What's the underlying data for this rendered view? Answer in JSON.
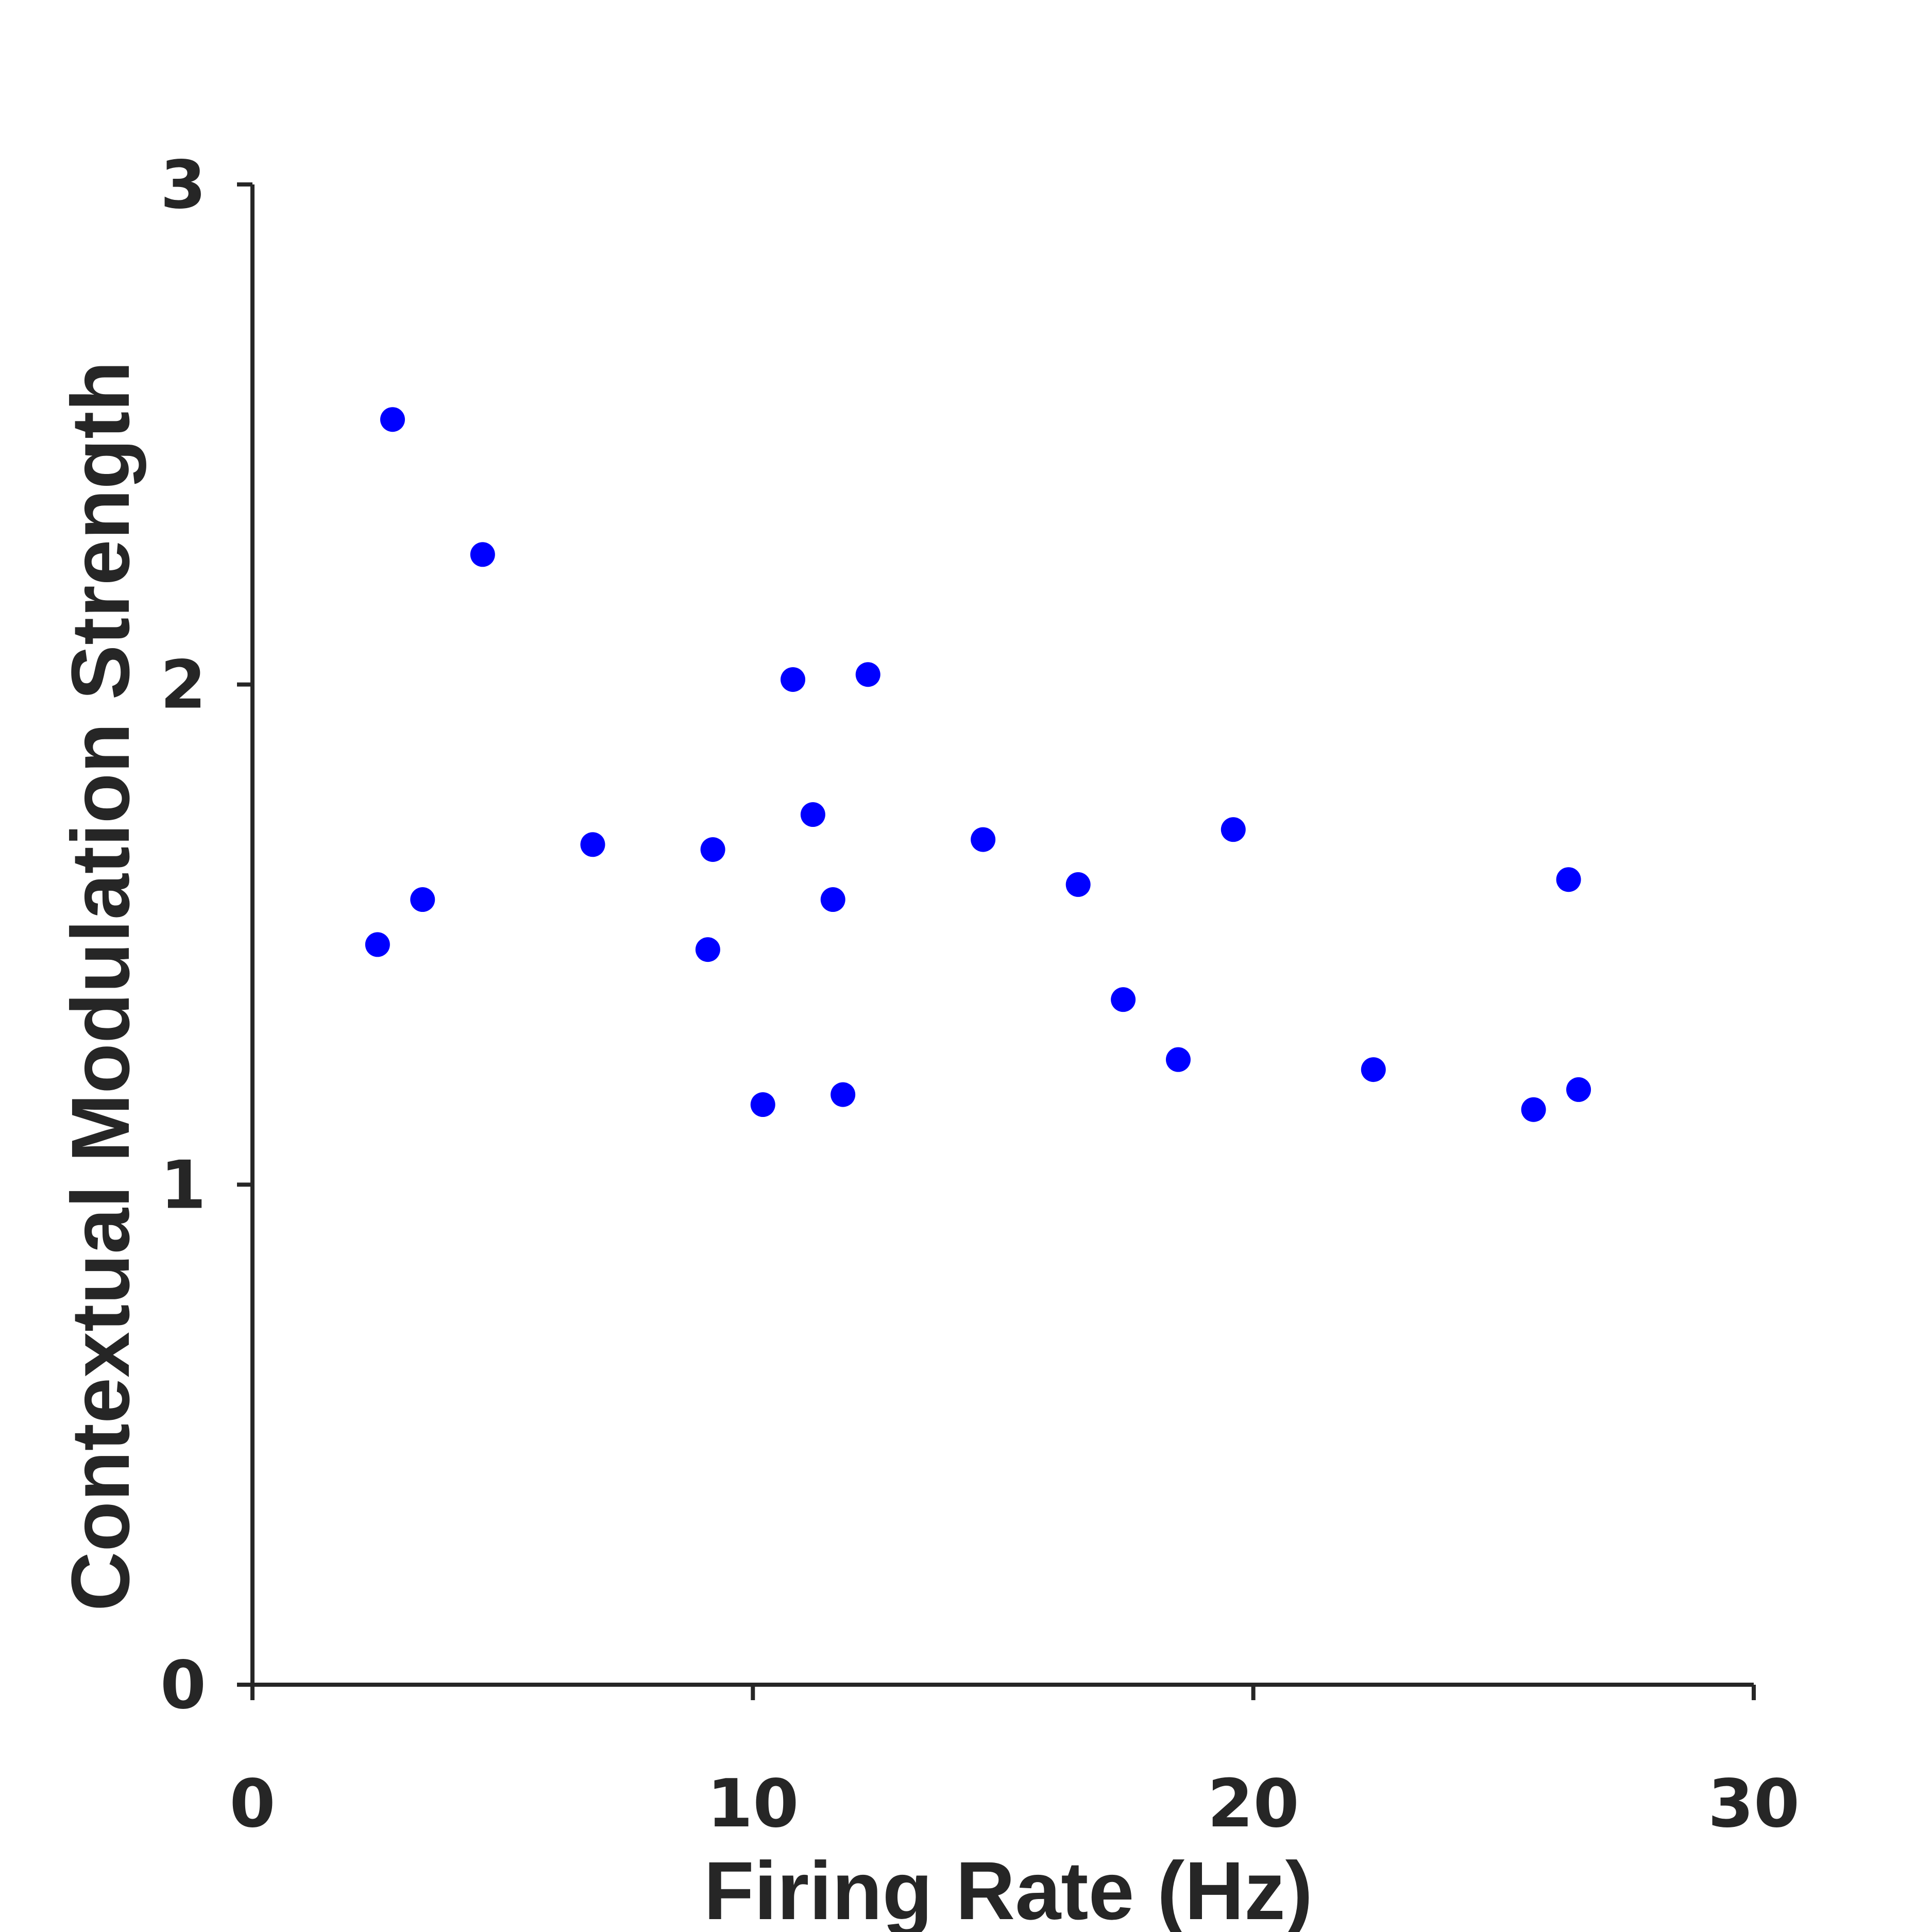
{
  "chart_data": {
    "type": "scatter",
    "title": "",
    "xlabel": "Firing Rate (Hz)",
    "ylabel": "Contextual Modulation Strength",
    "xlim": [
      0,
      30
    ],
    "ylim": [
      0,
      3
    ],
    "xticks": [
      "0",
      "10",
      "20",
      "30"
    ],
    "yticks": [
      "0",
      "1",
      "2",
      "3"
    ],
    "grid": false,
    "marker_color": "#0000ff",
    "axis_color": "#262626",
    "points": [
      {
        "x": 2.5,
        "y": 1.48
      },
      {
        "x": 2.8,
        "y": 2.53
      },
      {
        "x": 3.4,
        "y": 1.57
      },
      {
        "x": 4.6,
        "y": 2.26
      },
      {
        "x": 6.8,
        "y": 1.68
      },
      {
        "x": 9.1,
        "y": 1.47
      },
      {
        "x": 9.2,
        "y": 1.67
      },
      {
        "x": 10.2,
        "y": 1.16
      },
      {
        "x": 10.8,
        "y": 2.01
      },
      {
        "x": 11.2,
        "y": 1.74
      },
      {
        "x": 11.6,
        "y": 1.57
      },
      {
        "x": 11.8,
        "y": 1.18
      },
      {
        "x": 12.3,
        "y": 2.02
      },
      {
        "x": 14.6,
        "y": 1.69
      },
      {
        "x": 16.5,
        "y": 1.6
      },
      {
        "x": 17.4,
        "y": 1.37
      },
      {
        "x": 18.5,
        "y": 1.25
      },
      {
        "x": 19.6,
        "y": 1.71
      },
      {
        "x": 22.4,
        "y": 1.23
      },
      {
        "x": 25.6,
        "y": 1.15
      },
      {
        "x": 26.3,
        "y": 1.61
      },
      {
        "x": 26.5,
        "y": 1.19
      }
    ]
  }
}
